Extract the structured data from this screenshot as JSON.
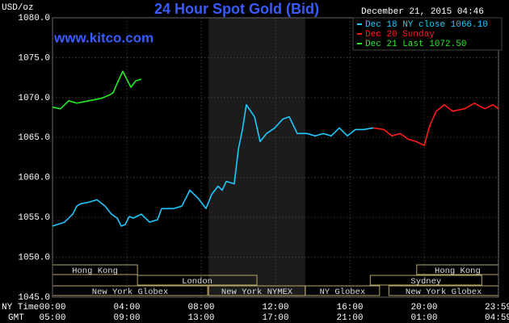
{
  "chart_data": {
    "type": "line",
    "title": "24 Hour Spot Gold (Bid)",
    "site": "www.kitco.com",
    "y_label": "USD/oz",
    "timestamp": "December 21, 2015 04:46",
    "x_axis_labels": [
      "NY Time",
      "GMT"
    ],
    "xlim": [
      0,
      24
    ],
    "ylim": [
      1045,
      1080
    ],
    "yticks": [
      {
        "value": 1045,
        "label": "1045.0"
      },
      {
        "value": 1050,
        "label": "1050.0"
      },
      {
        "value": 1055,
        "label": "1055.0"
      },
      {
        "value": 1060,
        "label": "1060.0"
      },
      {
        "value": 1065,
        "label": "1065.0"
      },
      {
        "value": 1070,
        "label": "1070.0"
      },
      {
        "value": 1075,
        "label": "1075.0"
      },
      {
        "value": 1080,
        "label": "1080.0"
      }
    ],
    "xticks": [
      {
        "value": 0,
        "label": "00:00"
      },
      {
        "value": 4,
        "label": "04:00"
      },
      {
        "value": 8,
        "label": "08:00"
      },
      {
        "value": 12,
        "label": "12:00"
      },
      {
        "value": 16,
        "label": "16:00"
      },
      {
        "value": 20,
        "label": "20:00"
      },
      {
        "value": 23.98,
        "label": "23:59"
      }
    ],
    "xticks_gmt": [
      {
        "value": 0,
        "label": "05:00"
      },
      {
        "value": 4,
        "label": "09:00"
      },
      {
        "value": 8,
        "label": "13:00"
      },
      {
        "value": 12,
        "label": "17:00"
      },
      {
        "value": 16,
        "label": "21:00"
      },
      {
        "value": 20,
        "label": "01:00"
      },
      {
        "value": 23.98,
        "label": "04:59"
      }
    ],
    "grid": true,
    "shaded": [
      8.4,
      13.6
    ],
    "sessions": [
      [
        {
          "label": "Hong Kong",
          "start": 0,
          "end": 4.57
        },
        {
          "label": "Hong Kong",
          "start": 19.6,
          "end": 24
        }
      ],
      [
        {
          "label": "London",
          "start": 4.57,
          "end": 11
        },
        {
          "label": "Sydney",
          "start": 17.1,
          "end": 23.1
        }
      ],
      [
        {
          "label": "New York Globex",
          "start": 0,
          "end": 8.35
        },
        {
          "label": "New York NYMEX",
          "start": 8.4,
          "end": 13.6
        },
        {
          "label": "NY Globex",
          "start": 13.6,
          "end": 17.6
        },
        {
          "label": "New York Globex",
          "start": 18.1,
          "end": 24
        }
      ]
    ],
    "series": [
      {
        "name": "Dec 18 NY close 1066.10",
        "color": "#1ec8ff",
        "x": [
          0,
          0.65,
          1.09,
          1.3,
          1.52,
          1.96,
          2.39,
          2.83,
          3.17,
          3.48,
          3.7,
          3.91,
          4.13,
          4.35,
          4.78,
          5.22,
          5.65,
          5.87,
          6.52,
          6.96,
          7.39,
          7.83,
          8.26,
          8.57,
          8.91,
          9.13,
          9.35,
          9.78,
          10,
          10.22,
          10.43,
          10.87,
          11.17,
          11.52,
          11.96,
          12.39,
          12.74,
          13.17,
          13.7,
          14.13,
          14.57,
          15,
          15.43,
          15.87,
          16.3,
          16.74,
          17.26
        ],
        "values": [
          1053.9,
          1054.4,
          1055.4,
          1056.4,
          1056.7,
          1056.9,
          1057.2,
          1056.4,
          1055.4,
          1054.9,
          1053.9,
          1054.1,
          1055.1,
          1054.9,
          1055.4,
          1054.4,
          1054.7,
          1056.1,
          1056.1,
          1056.4,
          1058.4,
          1057.4,
          1056.1,
          1057.9,
          1058.9,
          1058.4,
          1059.5,
          1059.2,
          1063.5,
          1066.0,
          1069.1,
          1067.6,
          1064.5,
          1065.5,
          1066.2,
          1067.3,
          1067.6,
          1065.5,
          1065.5,
          1065.2,
          1065.5,
          1065.2,
          1066.2,
          1065.2,
          1066.0,
          1066.0,
          1066.2
        ]
      },
      {
        "name": "Dec 20 Sunday",
        "color": "#ff1a1a",
        "x": [
          17.26,
          17.83,
          18.26,
          18.7,
          19.13,
          19.57,
          20,
          20.3,
          20.65,
          21.09,
          21.52,
          22.17,
          22.7,
          23.26,
          23.7,
          24
        ],
        "values": [
          1066.2,
          1066.0,
          1065.2,
          1065.5,
          1064.8,
          1064.5,
          1064.0,
          1066.5,
          1068.3,
          1069.1,
          1068.3,
          1068.6,
          1069.3,
          1068.6,
          1069.1,
          1068.6
        ]
      },
      {
        "name": "Dec 21 Last 1072.50",
        "color": "#22ee22",
        "x": [
          0,
          0.43,
          0.87,
          1.3,
          1.96,
          2.61,
          3.04,
          3.26,
          3.48,
          3.78,
          4.04,
          4.22,
          4.48,
          4.78
        ],
        "values": [
          1068.8,
          1068.6,
          1069.6,
          1069.3,
          1069.6,
          1069.9,
          1070.3,
          1070.6,
          1071.8,
          1073.3,
          1072.1,
          1071.3,
          1072.1,
          1072.3
        ]
      }
    ]
  }
}
